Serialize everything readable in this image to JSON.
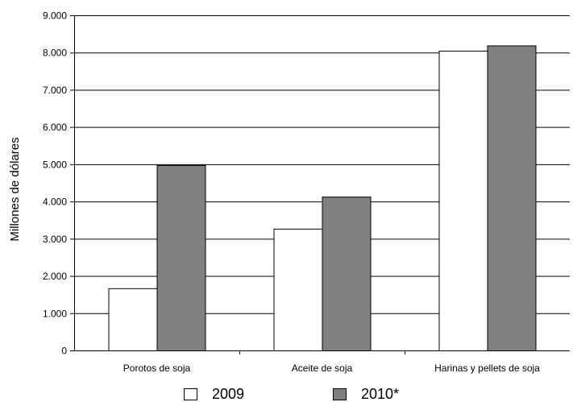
{
  "chart_data": {
    "type": "bar",
    "title": "",
    "xlabel": "",
    "ylabel": "Millones de dólares",
    "ylim": [
      0,
      9000
    ],
    "ytick_labels": [
      "0",
      "1.000",
      "2.000",
      "3.000",
      "4.000",
      "5.000",
      "6.000",
      "7.000",
      "8.000",
      "9.000"
    ],
    "yticks": [
      0,
      1000,
      2000,
      3000,
      4000,
      5000,
      6000,
      7000,
      8000,
      9000
    ],
    "categories": [
      "Porotos de soja",
      "Aceite de soja",
      "Harinas y pellets de soja"
    ],
    "series": [
      {
        "name": "2009",
        "values": [
          1670,
          3270,
          8050
        ],
        "color": "#ffffff"
      },
      {
        "name": "2010*",
        "values": [
          4980,
          4130,
          8190
        ],
        "color": "#808080"
      }
    ],
    "grid": "horizontal",
    "legend_position": "bottom"
  }
}
